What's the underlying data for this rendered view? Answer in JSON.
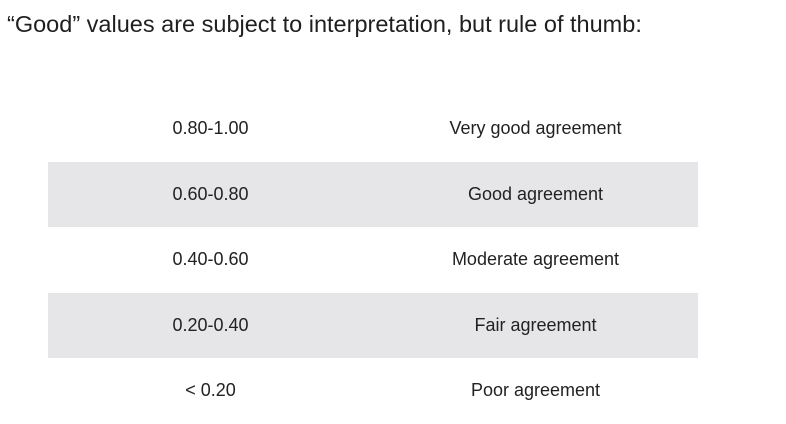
{
  "heading": "“Good” values are subject to interpretation, but rule of thumb:",
  "table": {
    "rows": [
      {
        "range": "0.80-1.00",
        "description": "Very good agreement",
        "shaded": false
      },
      {
        "range": "0.60-0.80",
        "description": "Good agreement",
        "shaded": true
      },
      {
        "range": "0.40-0.60",
        "description": "Moderate agreement",
        "shaded": false
      },
      {
        "range": "0.20-0.40",
        "description": "Fair agreement",
        "shaded": true
      },
      {
        "range": "< 0.20",
        "description": "Poor agreement",
        "shaded": false
      }
    ]
  },
  "colors": {
    "shaded_row": "#e6e6e8",
    "text": "#222222"
  }
}
